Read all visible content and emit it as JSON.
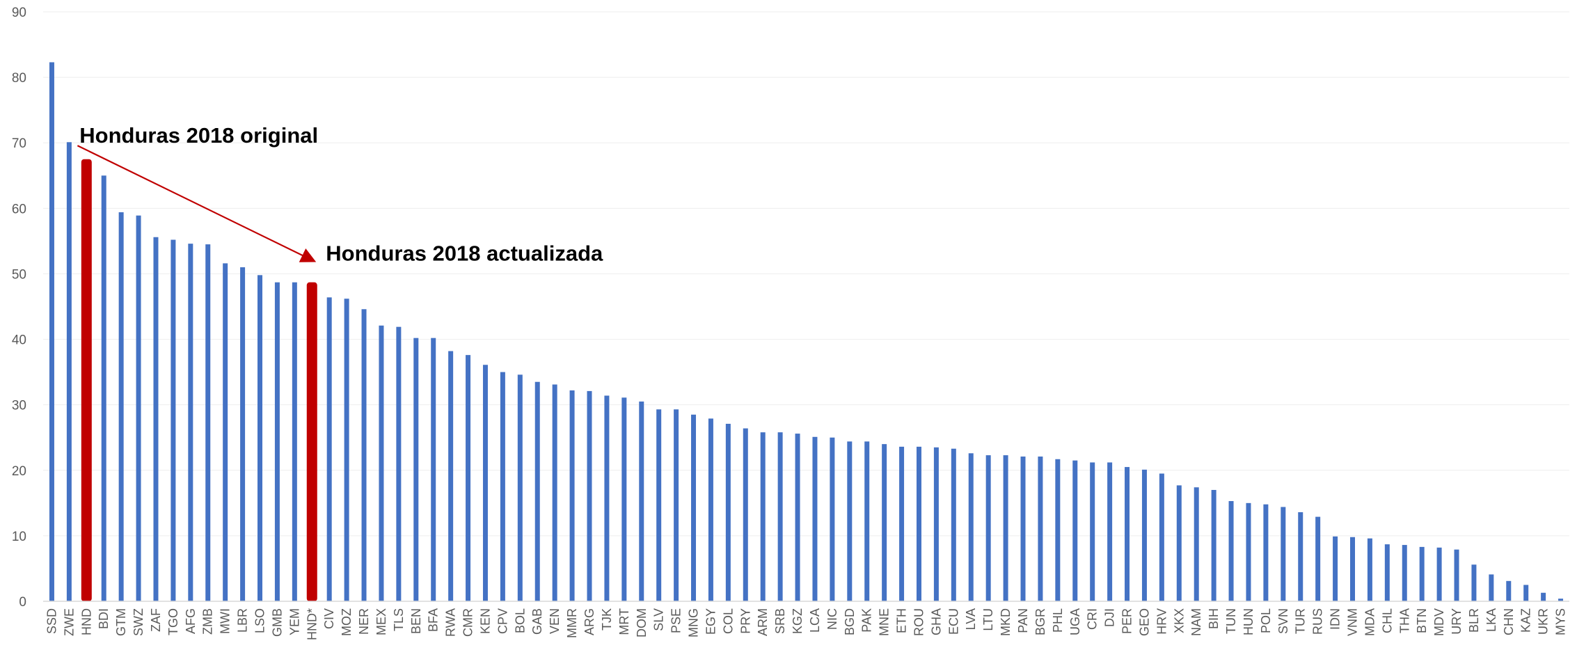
{
  "chart_data": {
    "type": "bar",
    "title": "",
    "xlabel": "",
    "ylabel": "",
    "ylim": [
      0,
      90
    ],
    "yticks": [
      0,
      10,
      20,
      30,
      40,
      50,
      60,
      70,
      80,
      90
    ],
    "grid": true,
    "categories": [
      "SSD",
      "ZWE",
      "HND",
      "BDI",
      "GTM",
      "SWZ",
      "ZAF",
      "TGO",
      "AFG",
      "ZMB",
      "MWI",
      "LBR",
      "LSO",
      "GMB",
      "YEM",
      "HND*",
      "CIV",
      "MOZ",
      "NER",
      "MEX",
      "TLS",
      "BEN",
      "BFA",
      "RWA",
      "CMR",
      "KEN",
      "CPV",
      "BOL",
      "GAB",
      "VEN",
      "MMR",
      "ARG",
      "TJK",
      "MRT",
      "DOM",
      "SLV",
      "PSE",
      "MNG",
      "EGY",
      "COL",
      "PRY",
      "ARM",
      "SRB",
      "KGZ",
      "LCA",
      "NIC",
      "BGD",
      "PAK",
      "MNE",
      "ETH",
      "ROU",
      "GHA",
      "ECU",
      "LVA",
      "LTU",
      "MKD",
      "PAN",
      "BGR",
      "PHL",
      "UGA",
      "CRI",
      "DJI",
      "PER",
      "GEO",
      "HRV",
      "XKX",
      "NAM",
      "BIH",
      "TUN",
      "HUN",
      "POL",
      "SVN",
      "TUR",
      "RUS",
      "IDN",
      "VNM",
      "MDA",
      "CHL",
      "THA",
      "BTN",
      "MDV",
      "URY",
      "BLR",
      "LKA",
      "CHN",
      "KAZ",
      "UKR",
      "MYS"
    ],
    "values": [
      82.3,
      70.1,
      67.5,
      65.0,
      59.4,
      58.9,
      55.6,
      55.2,
      54.6,
      54.5,
      51.6,
      51.0,
      49.8,
      48.7,
      48.7,
      48.7,
      46.4,
      46.2,
      44.6,
      42.1,
      41.9,
      40.2,
      40.2,
      38.2,
      37.6,
      36.1,
      35.0,
      34.6,
      33.5,
      33.1,
      32.2,
      32.1,
      31.4,
      31.1,
      30.5,
      29.3,
      29.3,
      28.5,
      27.9,
      27.1,
      26.4,
      25.8,
      25.8,
      25.6,
      25.1,
      25.0,
      24.4,
      24.4,
      24.0,
      23.6,
      23.6,
      23.5,
      23.3,
      22.6,
      22.3,
      22.3,
      22.1,
      22.1,
      21.7,
      21.5,
      21.2,
      21.2,
      20.5,
      20.1,
      19.5,
      17.7,
      17.4,
      17.0,
      15.3,
      15.0,
      14.8,
      14.4,
      13.6,
      12.9,
      9.9,
      9.8,
      9.6,
      8.7,
      8.6,
      8.3,
      8.2,
      7.9,
      5.6,
      4.1,
      3.1,
      2.5,
      1.3,
      0.4
    ],
    "colors": {
      "default": "#4472C4",
      "highlight": "#C00000"
    },
    "highlight_categories": [
      "HND",
      "HND*"
    ],
    "annotations": [
      {
        "text": "Honduras 2018 original",
        "category": "HND",
        "value": 70
      },
      {
        "text": "Honduras 2018 actualizada",
        "category": "HND*",
        "value": 52
      }
    ],
    "arrow": {
      "from_category": "ZWE",
      "from_value": 70,
      "to_category": "HND*",
      "to_value": 52,
      "color": "#C00000"
    }
  }
}
